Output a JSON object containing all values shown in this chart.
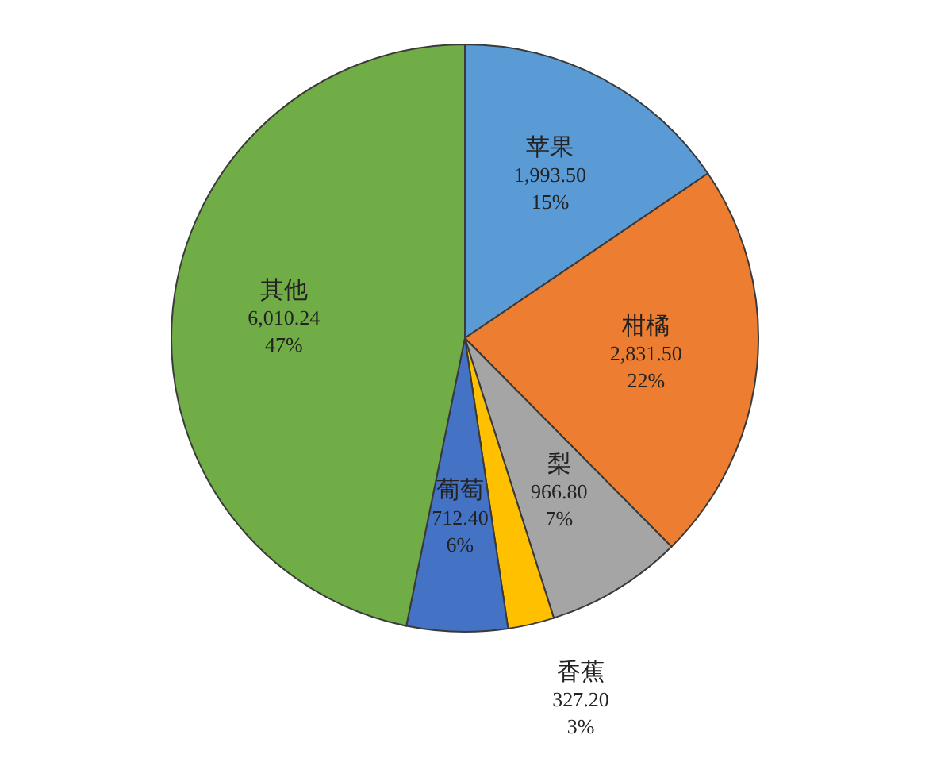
{
  "chart_data": {
    "type": "pie",
    "categories": [
      "苹果",
      "柑橘",
      "梨",
      "香蕉",
      "葡萄",
      "其他"
    ],
    "values": [
      1993.5,
      2831.5,
      966.8,
      327.2,
      712.4,
      6010.24
    ],
    "colors": [
      "#5b9bd5",
      "#ed7d31",
      "#a5a5a5",
      "#ffc000",
      "#4472c4",
      "#70ad47"
    ],
    "value_labels": [
      "1,993.50\n15%",
      "2,831.50\n22%",
      "966.80\n7%",
      "327.20\n3%",
      "712.40\n6%",
      "6,010.24\n47%"
    ]
  }
}
